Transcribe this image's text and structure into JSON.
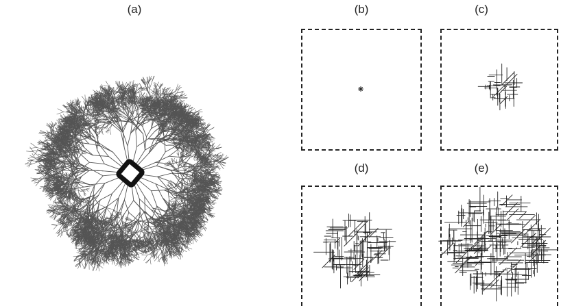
{
  "figure": {
    "panels": [
      {
        "id": "a",
        "label": "(a)",
        "content": "large branching dendritic network with a dark square-ring seed at its centre"
      },
      {
        "id": "b",
        "label": "(b)",
        "content": "single seed point"
      },
      {
        "id": "c",
        "label": "(c)",
        "content": "small lattice cluster"
      },
      {
        "id": "d",
        "label": "(d)",
        "content": "medium lattice cluster"
      },
      {
        "id": "e",
        "label": "(e)",
        "content": "large dense lattice cluster"
      }
    ],
    "colors": {
      "ink": "#222222",
      "branch": "#555555",
      "background": "#ffffff"
    }
  }
}
